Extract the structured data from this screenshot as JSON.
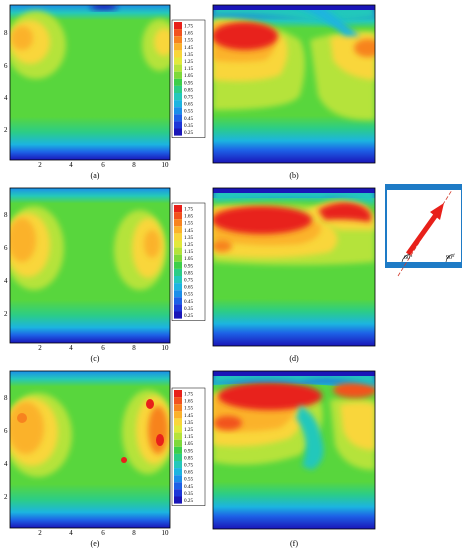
{
  "panels": [
    {
      "id": "a",
      "caption": "(a)"
    },
    {
      "id": "b",
      "caption": "(b)"
    },
    {
      "id": "c",
      "caption": "(c)"
    },
    {
      "id": "d",
      "caption": "(d)"
    },
    {
      "id": "e",
      "caption": "(e)"
    },
    {
      "id": "f",
      "caption": "(f)"
    }
  ],
  "x_ticks": [
    "2",
    "4",
    "6",
    "8",
    "10"
  ],
  "y_ticks": [
    "8",
    "6",
    "4",
    "2"
  ],
  "colorbar": {
    "levels": [
      "1.75",
      "1.65",
      "1.55",
      "1.45",
      "1.35",
      "1.25",
      "1.15",
      "1.05",
      "0.95",
      "0.85",
      "0.75",
      "0.65",
      "0.55",
      "0.45",
      "0.35",
      "0.25"
    ],
    "colors": [
      "#e8201a",
      "#f2521e",
      "#f7831f",
      "#fbb22b",
      "#f9d63a",
      "#e2e93b",
      "#b5e33a",
      "#7ed93a",
      "#3dcf4a",
      "#2ccd86",
      "#24c8bb",
      "#1cb4e0",
      "#1b8ee9",
      "#1d60e6",
      "#1d36d8",
      "#1a16b8"
    ]
  },
  "inset": {
    "angle_left": "60°",
    "angle_right": "90°"
  },
  "colors": {
    "deep_blue": "#1a16b8",
    "blue": "#1d60e6",
    "cyan": "#1cb4e0",
    "green": "#58d63d",
    "yellow": "#f5e13c",
    "orange": "#f7831f",
    "red": "#e8201a",
    "frame": "#1e7bc6"
  }
}
